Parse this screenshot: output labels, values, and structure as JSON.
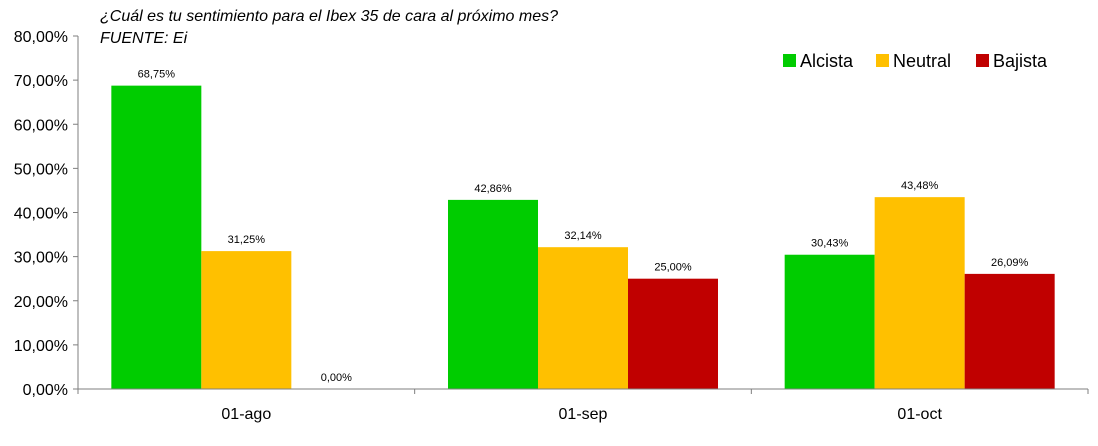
{
  "chart_data": {
    "type": "bar",
    "title": "¿Cuál es tu sentimiento para el Ibex 35 de cara al próximo mes?",
    "subtitle": "FUENTE: Ei",
    "categories": [
      "01-ago",
      "01-sep",
      "01-oct"
    ],
    "series": [
      {
        "name": "Alcista",
        "color": "#00cc00",
        "values": [
          68.75,
          42.86,
          30.43
        ],
        "labels": [
          "68,75%",
          "42,86%",
          "30,43%"
        ]
      },
      {
        "name": "Neutral",
        "color": "#ffc000",
        "values": [
          31.25,
          32.14,
          43.48
        ],
        "labels": [
          "31,25%",
          "32,14%",
          "43,48%"
        ]
      },
      {
        "name": "Bajista",
        "color": "#c00000",
        "values": [
          0.0,
          25.0,
          26.09
        ],
        "labels": [
          "0,00%",
          "25,00%",
          "26,09%"
        ]
      }
    ],
    "y_ticks": [
      "0,00%",
      "10,00%",
      "20,00%",
      "30,00%",
      "40,00%",
      "50,00%",
      "60,00%",
      "70,00%",
      "80,00%"
    ],
    "ylim": [
      0,
      80
    ],
    "xlabel": "",
    "ylabel": "",
    "grid": false,
    "legend_position": "top-right"
  }
}
